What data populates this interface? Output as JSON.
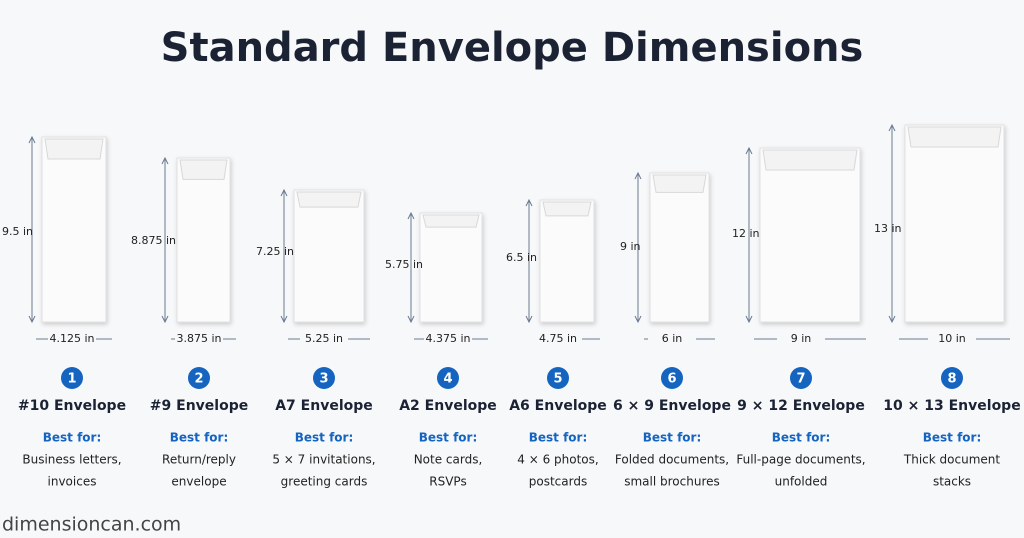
{
  "header": {
    "title": "Standard Envelope Dimensions"
  },
  "envelopes": [
    {
      "number": "1",
      "name": "#10 Envelope",
      "height": "9.5 in",
      "width": "4.125 in",
      "best_for": "Best for:",
      "uses": [
        "Business letters,",
        "invoices"
      ]
    },
    {
      "number": "2",
      "name": "#9 Envelope",
      "height": "8.875 in",
      "width": "3.875 in",
      "best_for": "Best for:",
      "uses": [
        "Return/reply",
        "envelope"
      ]
    },
    {
      "number": "3",
      "name": "A7 Envelope",
      "height": "7.25 in",
      "width": "5.25 in",
      "best_for": "Best for:",
      "uses": [
        "5 × 7 invitations,",
        "greeting cards"
      ]
    },
    {
      "number": "4",
      "name": "A2 Envelope",
      "height": "5.75 in",
      "width": "4.375 in",
      "best_for": "Best for:",
      "uses": [
        "Note cards,",
        "RSVPs"
      ]
    },
    {
      "number": "5",
      "name": "A6 Envelope",
      "height": "6.5 in",
      "width": "4.75 in",
      "best_for": "Best for:",
      "uses": [
        "4 × 6 photos,",
        "postcards"
      ]
    },
    {
      "number": "6",
      "name": "6 × 9 Envelope",
      "height": "9 in",
      "width": "6 in",
      "best_for": "Best for:",
      "uses": [
        "Folded documents,",
        "small brochures"
      ]
    },
    {
      "number": "7",
      "name": "9 × 12 Envelope",
      "height": "12 in",
      "width": "9 in",
      "best_for": "Best for:",
      "uses": [
        "Full-page documents,",
        "unfolded"
      ]
    },
    {
      "number": "8",
      "name": "10 × 13 Envelope",
      "height": "13 in",
      "width": "10 in",
      "best_for": "Best for:",
      "uses": [
        "Thick document",
        "stacks"
      ]
    }
  ],
  "watermark": "dimensioncan.com"
}
